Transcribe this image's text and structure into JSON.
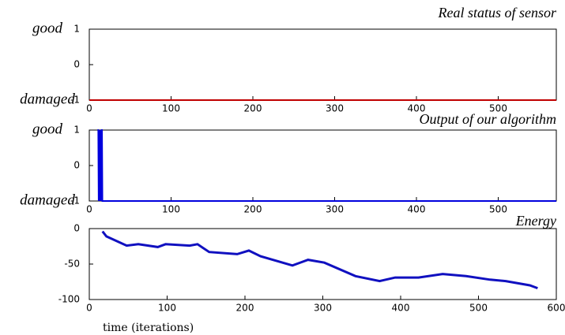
{
  "chart_data": [
    {
      "type": "line",
      "title": "Real status of sensor",
      "side_labels": [
        {
          "value": 1,
          "label": "good"
        },
        {
          "value": -1,
          "label": "damaged"
        }
      ],
      "xlim": [
        0,
        571
      ],
      "xticks": [
        0,
        100,
        200,
        300,
        400,
        500
      ],
      "ylim": [
        -1,
        1
      ],
      "yticks": [
        -1,
        0,
        1
      ],
      "series": [
        {
          "color": "#c00000",
          "x": [
            0,
            571
          ],
          "values": [
            -1,
            -1
          ]
        }
      ]
    },
    {
      "type": "line",
      "title": "Output of our algorithm",
      "side_labels": [
        {
          "value": 1,
          "label": "good"
        },
        {
          "value": -1,
          "label": "damaged"
        }
      ],
      "xlim": [
        0,
        571
      ],
      "xticks": [
        0,
        100,
        200,
        300,
        400,
        500
      ],
      "ylim": [
        -1,
        1
      ],
      "yticks": [
        -1,
        0,
        1
      ],
      "series": [
        {
          "color": "#0000dd",
          "x": [
            10,
            11,
            11.5,
            12,
            13,
            13.5,
            14,
            15,
            15.5,
            16,
            17,
            571
          ],
          "values": [
            1,
            1,
            -1,
            1,
            -1,
            1,
            -1,
            1,
            1,
            -1,
            -1,
            -1
          ]
        }
      ]
    },
    {
      "type": "line",
      "title": "Energy",
      "x_label": "time (iterations)",
      "xlim": [
        0,
        600
      ],
      "xticks": [
        0,
        100,
        200,
        300,
        400,
        500,
        600
      ],
      "ylim": [
        -100,
        0
      ],
      "yticks": [
        -100,
        -50,
        0
      ],
      "series": [
        {
          "color": "#1010c0",
          "x": [
            17,
            22,
            48,
            63,
            88,
            98,
            129,
            139,
            154,
            190,
            205,
            220,
            261,
            281,
            302,
            342,
            373,
            393,
            423,
            454,
            484,
            515,
            535,
            566,
            576
          ],
          "values": [
            -4,
            -11,
            -24,
            -22,
            -26,
            -22,
            -24,
            -22,
            -33,
            -36,
            -31,
            -39,
            -52,
            -44,
            -48,
            -67,
            -74,
            -69,
            -69,
            -64,
            -67,
            -72,
            -74,
            -80,
            -84
          ]
        }
      ]
    }
  ]
}
